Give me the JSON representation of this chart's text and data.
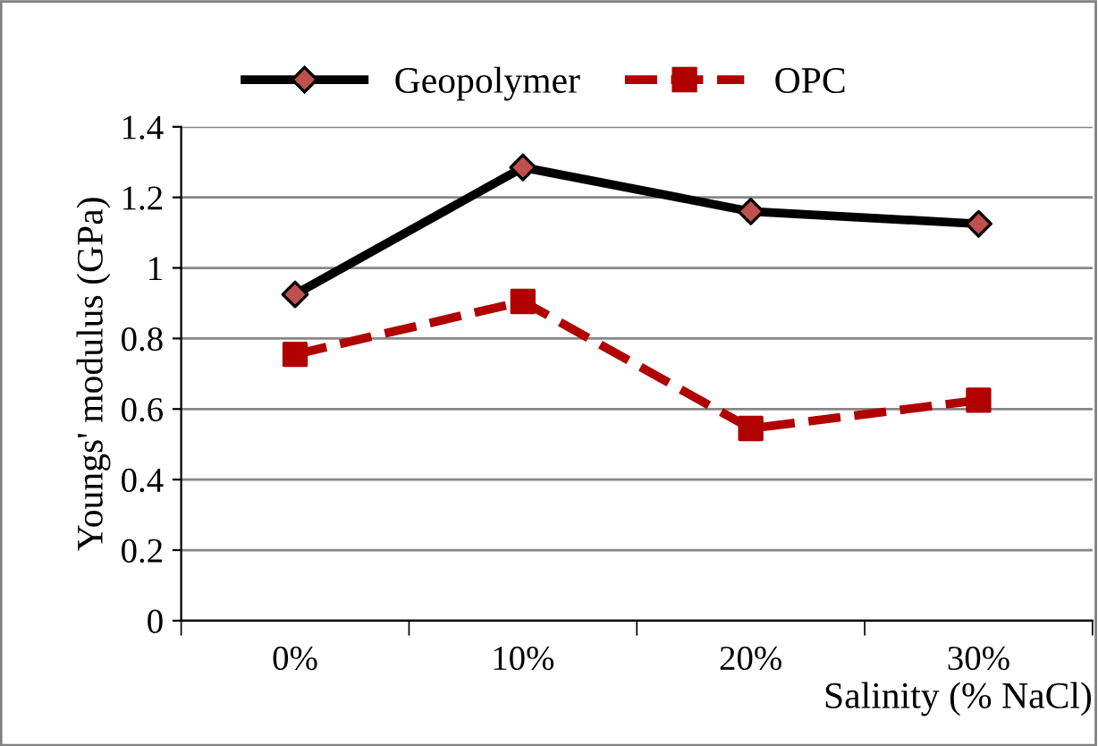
{
  "chart_data": {
    "type": "line",
    "xlabel": "Salinity (% NaCl)",
    "ylabel": "Youngs' modulus (GPa)",
    "categories": [
      "0%",
      "10%",
      "20%",
      "30%"
    ],
    "series": [
      {
        "name": "Geopolymer",
        "color": "#000000",
        "colors": [
          "#c0504d",
          "#c0504d",
          "#c0504d",
          "#c0504d"
        ],
        "marker": "diamond",
        "line_style": "solid",
        "values": [
          0.925,
          1.285,
          1.16,
          1.125
        ]
      },
      {
        "name": "OPC",
        "color": "#b00000",
        "marker": "square",
        "line_style": "dashed",
        "values": [
          0.755,
          0.905,
          0.545,
          0.625
        ]
      }
    ],
    "ylim": [
      0,
      1.4
    ],
    "yticks": [
      0,
      0.2,
      0.4,
      0.6,
      0.8,
      1,
      1.2,
      1.4
    ],
    "grid": "y",
    "legend": "top"
  }
}
